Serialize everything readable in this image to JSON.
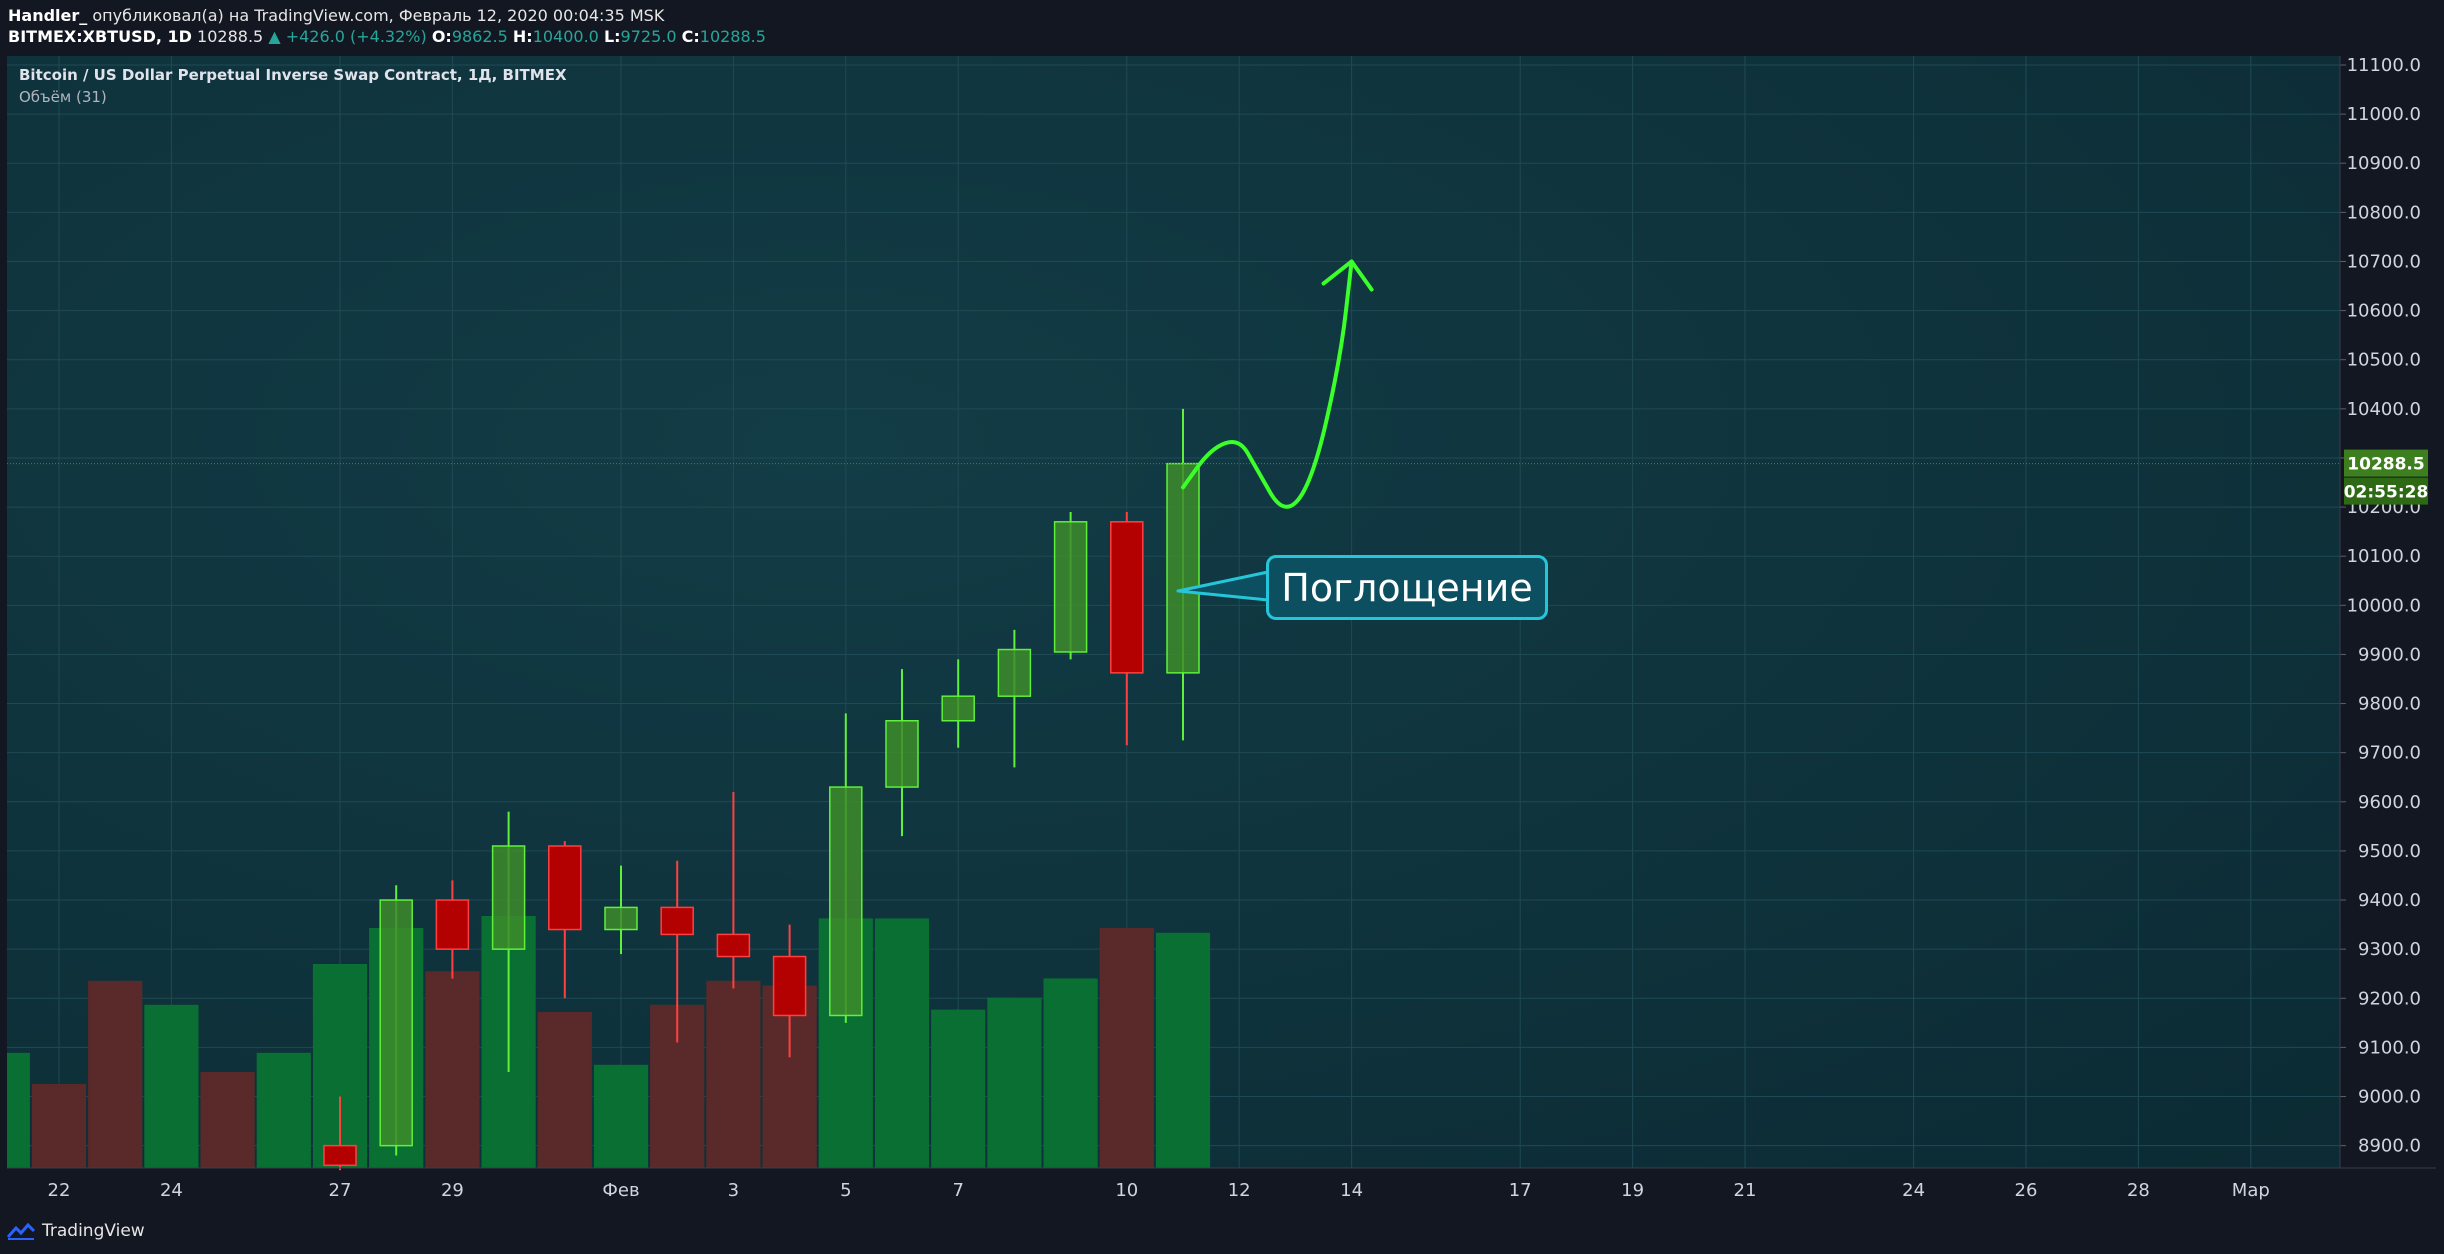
{
  "header": {
    "user": "Handler_",
    "published_text": "опубликовал(а) на TradingView.com, Февраль 12, 2020 00:04:35 MSK",
    "symbol": "BITMEX:XBTUSD, 1D",
    "last": "10288.5",
    "change": "▲ +426.0 (+4.32%)",
    "o_label": "O:",
    "o_value": "9862.5",
    "h_label": "H:",
    "h_value": "10400.0",
    "l_label": "L:",
    "l_value": "9725.0",
    "c_label": "C:",
    "c_value": "10288.5"
  },
  "pane": {
    "title": "Bitcoin / US Dollar Perpetual Inverse Swap Contract, 1Д, BITMEX",
    "volume_label": "Объём (31)"
  },
  "price_tag": {
    "price": "10288.5",
    "countdown": "02:55:28"
  },
  "annotation": {
    "text": "Поглощение"
  },
  "footer": {
    "brand": "TradingView"
  },
  "colors": {
    "background": "#0e313b",
    "up_body": "#3d8c2a",
    "up_border": "#5ff03a",
    "down_body": "#b30000",
    "down_border": "#ff4040",
    "vol_up": "#0a6f33",
    "vol_down": "#5a2a2a",
    "arrow": "#3aff2a",
    "callout": "#26c6da"
  },
  "chart_data": {
    "type": "candlestick",
    "y_axis": {
      "min": 8850,
      "max": 11100,
      "ticks": [
        "11100.0",
        "11000.0",
        "10900.0",
        "10800.0",
        "10700.0",
        "10600.0",
        "10500.0",
        "10400.0",
        "10300.0",
        "10200.0",
        "10100.0",
        "10000.0",
        "9900.0",
        "9800.0",
        "9700.0",
        "9600.0",
        "9500.0",
        "9400.0",
        "9300.0",
        "9200.0",
        "9100.0",
        "9000.0",
        "8900.0"
      ]
    },
    "x_axis": {
      "labels": [
        {
          "text": "22",
          "day": 0
        },
        {
          "text": "24",
          "day": 2
        },
        {
          "text": "27",
          "day": 5
        },
        {
          "text": "29",
          "day": 7
        },
        {
          "text": "Фев",
          "day": 10
        },
        {
          "text": "3",
          "day": 12
        },
        {
          "text": "5",
          "day": 14
        },
        {
          "text": "7",
          "day": 16
        },
        {
          "text": "10",
          "day": 19
        },
        {
          "text": "12",
          "day": 21
        },
        {
          "text": "14",
          "day": 23
        },
        {
          "text": "17",
          "day": 26
        },
        {
          "text": "19",
          "day": 28
        },
        {
          "text": "21",
          "day": 30
        },
        {
          "text": "24",
          "day": 33
        },
        {
          "text": "26",
          "day": 35
        },
        {
          "text": "28",
          "day": 37
        },
        {
          "text": "Мар",
          "day": 39
        }
      ]
    },
    "candles": [
      {
        "date": "2020-01-27",
        "open": 8900,
        "high": 9000,
        "low": 8850,
        "close": 8860
      },
      {
        "date": "2020-01-28",
        "open": 8900,
        "high": 9430,
        "low": 8880,
        "close": 9400
      },
      {
        "date": "2020-01-29",
        "open": 9400,
        "high": 9440,
        "low": 9240,
        "close": 9300
      },
      {
        "date": "2020-01-30",
        "open": 9300,
        "high": 9580,
        "low": 9050,
        "close": 9510
      },
      {
        "date": "2020-01-31",
        "open": 9510,
        "high": 9520,
        "low": 9200,
        "close": 9340
      },
      {
        "date": "2020-02-01",
        "open": 9340,
        "high": 9470,
        "low": 9290,
        "close": 9385
      },
      {
        "date": "2020-02-02",
        "open": 9385,
        "high": 9480,
        "low": 9110,
        "close": 9330
      },
      {
        "date": "2020-02-03",
        "open": 9330,
        "high": 9620,
        "low": 9220,
        "close": 9285
      },
      {
        "date": "2020-02-04",
        "open": 9285,
        "high": 9350,
        "low": 9080,
        "close": 9165
      },
      {
        "date": "2020-02-05",
        "open": 9165,
        "high": 9780,
        "low": 9150,
        "close": 9630
      },
      {
        "date": "2020-02-06",
        "open": 9630,
        "high": 9870,
        "low": 9530,
        "close": 9765
      },
      {
        "date": "2020-02-07",
        "open": 9765,
        "high": 9890,
        "low": 9710,
        "close": 9815
      },
      {
        "date": "2020-02-08",
        "open": 9815,
        "high": 9950,
        "low": 9670,
        "close": 9910
      },
      {
        "date": "2020-02-09",
        "open": 9905,
        "high": 10190,
        "low": 9890,
        "close": 10170
      },
      {
        "date": "2020-02-10",
        "open": 10170,
        "high": 10190,
        "low": 9715,
        "close": 9862.5
      },
      {
        "date": "2020-02-11",
        "open": 9862.5,
        "high": 10400,
        "low": 9725,
        "close": 10288.5
      }
    ],
    "volume": [
      {
        "day": -1,
        "rel": 0.48,
        "dir": "up"
      },
      {
        "day": 0,
        "rel": 0.35,
        "dir": "down"
      },
      {
        "day": 1,
        "rel": 0.78,
        "dir": "down"
      },
      {
        "day": 2,
        "rel": 0.68,
        "dir": "up"
      },
      {
        "day": 3,
        "rel": 0.4,
        "dir": "down"
      },
      {
        "day": 4,
        "rel": 0.48,
        "dir": "up"
      },
      {
        "day": 5,
        "rel": 0.85,
        "dir": "up"
      },
      {
        "day": 6,
        "rel": 1.0,
        "dir": "up"
      },
      {
        "day": 7,
        "rel": 0.82,
        "dir": "down"
      },
      {
        "day": 8,
        "rel": 1.05,
        "dir": "up"
      },
      {
        "day": 9,
        "rel": 0.65,
        "dir": "down"
      },
      {
        "day": 10,
        "rel": 0.43,
        "dir": "up"
      },
      {
        "day": 11,
        "rel": 0.68,
        "dir": "down"
      },
      {
        "day": 12,
        "rel": 0.78,
        "dir": "down"
      },
      {
        "day": 13,
        "rel": 0.76,
        "dir": "down"
      },
      {
        "day": 14,
        "rel": 1.04,
        "dir": "up"
      },
      {
        "day": 15,
        "rel": 1.04,
        "dir": "up"
      },
      {
        "day": 16,
        "rel": 0.66,
        "dir": "up"
      },
      {
        "day": 17,
        "rel": 0.71,
        "dir": "up"
      },
      {
        "day": 18,
        "rel": 0.79,
        "dir": "up"
      },
      {
        "day": 19,
        "rel": 1.0,
        "dir": "down"
      },
      {
        "day": 20,
        "rel": 0.98,
        "dir": "up"
      }
    ],
    "projection": [
      {
        "day": 20.0,
        "price": 10240
      },
      {
        "day": 20.5,
        "price": 10320
      },
      {
        "day": 21.0,
        "price": 10340
      },
      {
        "day": 21.3,
        "price": 10280
      },
      {
        "day": 21.8,
        "price": 10180
      },
      {
        "day": 22.3,
        "price": 10250
      },
      {
        "day": 22.8,
        "price": 10500
      },
      {
        "day": 23.0,
        "price": 10700
      }
    ]
  }
}
